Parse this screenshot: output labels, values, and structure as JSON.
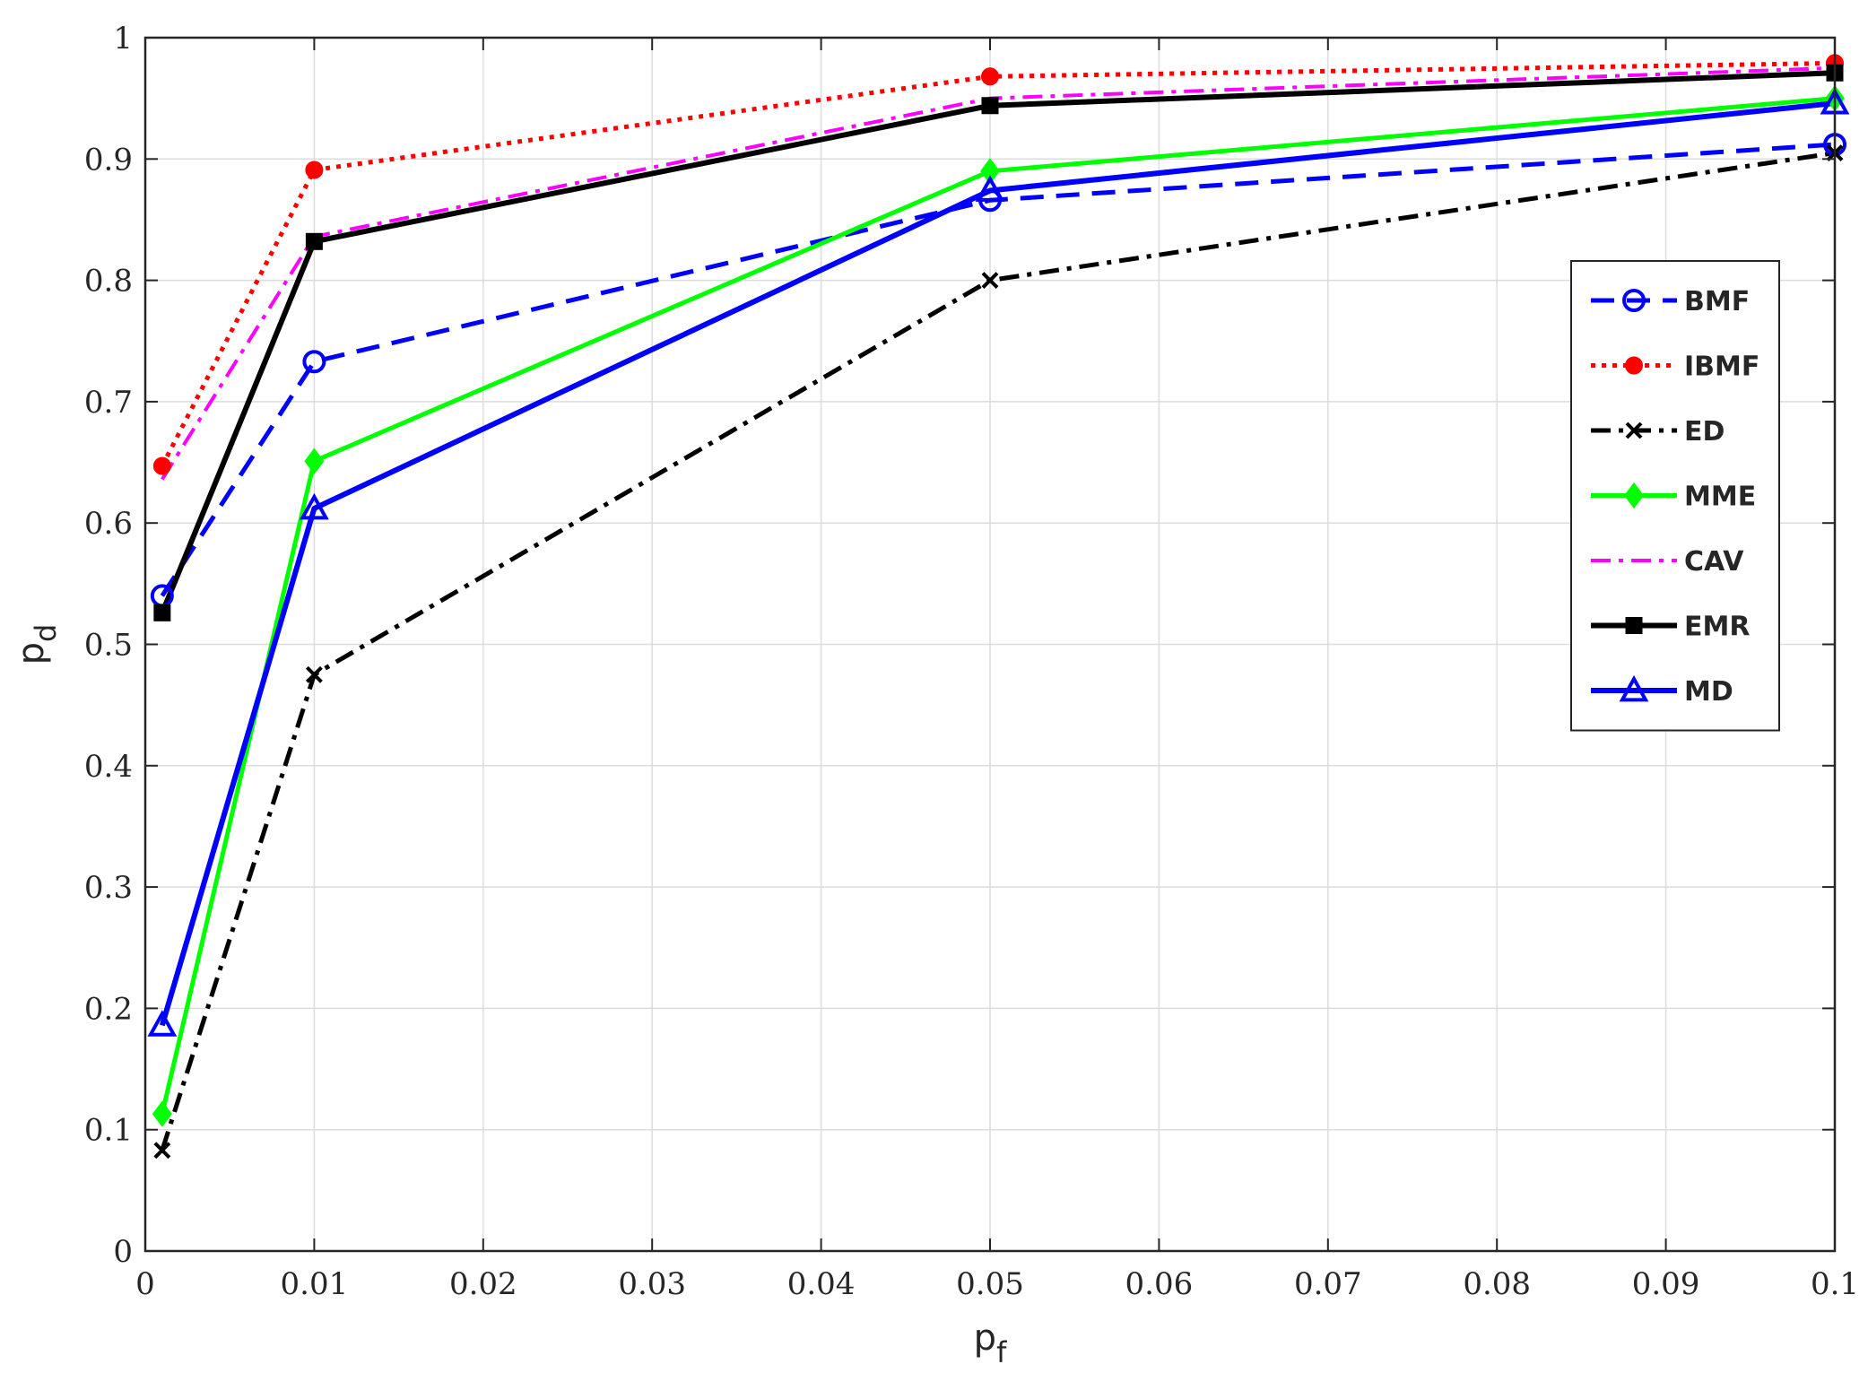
{
  "chart_data": {
    "type": "line",
    "title": "",
    "xlabel": {
      "main": "p",
      "sub": "f"
    },
    "ylabel": {
      "main": "p",
      "sub": "d"
    },
    "xlim": [
      0,
      0.1
    ],
    "ylim": [
      0,
      1
    ],
    "xticks": [
      "0",
      "0.01",
      "0.02",
      "0.03",
      "0.04",
      "0.05",
      "0.06",
      "0.07",
      "0.08",
      "0.09",
      "0.1"
    ],
    "yticks": [
      "0",
      "0.1",
      "0.2",
      "0.3",
      "0.4",
      "0.5",
      "0.6",
      "0.7",
      "0.8",
      "0.9",
      "1"
    ],
    "grid": true,
    "legend_position": "right",
    "x": [
      0.001,
      0.01,
      0.05,
      0.1
    ],
    "series": [
      {
        "name": "BMF",
        "values": [
          0.54,
          0.733,
          0.866,
          0.912
        ],
        "color": "#0000ff",
        "dash": "dashed",
        "marker": "circle-open",
        "width": 5
      },
      {
        "name": "IBMF",
        "values": [
          0.647,
          0.891,
          0.968,
          0.979
        ],
        "color": "#ff0000",
        "dash": "dotted",
        "marker": "circle-filled",
        "width": 5
      },
      {
        "name": "ED",
        "values": [
          0.083,
          0.475,
          0.8,
          0.905
        ],
        "color": "#000000",
        "dash": "dashdot",
        "marker": "x",
        "width": 5
      },
      {
        "name": "MME",
        "values": [
          0.113,
          0.651,
          0.89,
          0.95
        ],
        "color": "#00ff00",
        "dash": "solid",
        "marker": "diamond",
        "width": 5
      },
      {
        "name": "CAV",
        "values": [
          0.636,
          0.836,
          0.95,
          0.975
        ],
        "color": "#ff00ff",
        "dash": "dashdot",
        "marker": "none",
        "width": 4
      },
      {
        "name": "EMR",
        "values": [
          0.526,
          0.832,
          0.944,
          0.971
        ],
        "color": "#000000",
        "dash": "solid",
        "marker": "square",
        "width": 6
      },
      {
        "name": "MD",
        "values": [
          0.186,
          0.612,
          0.874,
          0.946
        ],
        "color": "#0000ff",
        "dash": "solid",
        "marker": "triangle-open",
        "width": 6
      }
    ]
  }
}
